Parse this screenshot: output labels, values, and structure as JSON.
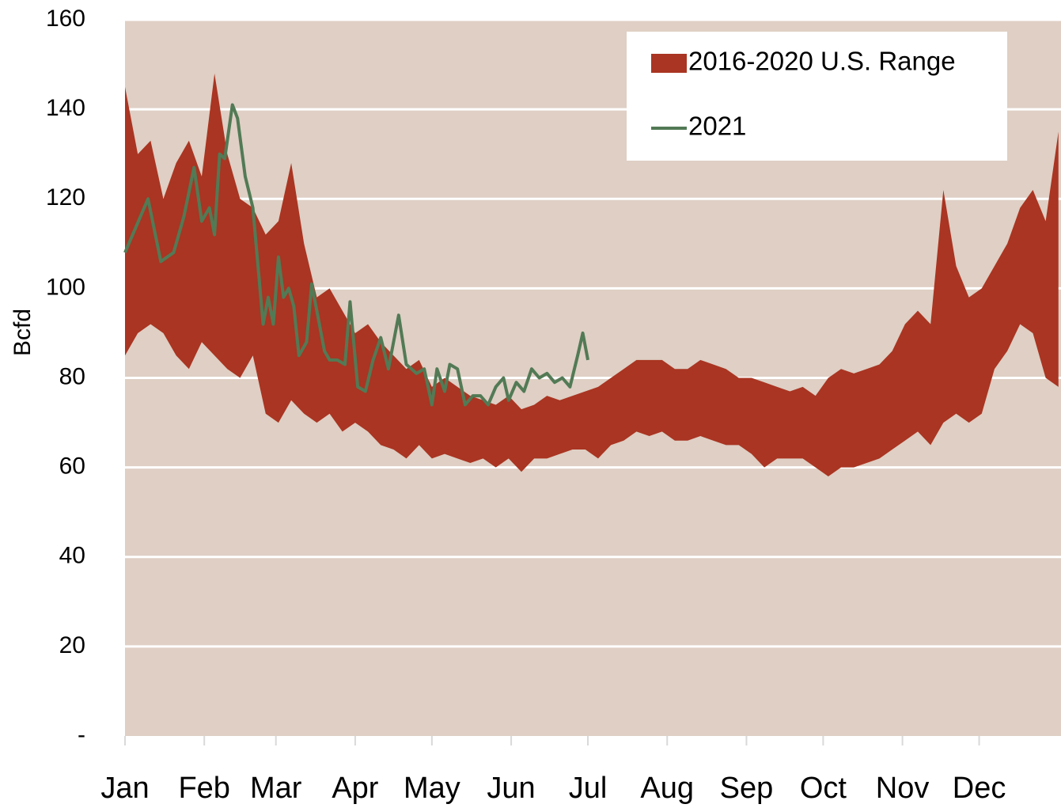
{
  "chart_data": {
    "type": "line",
    "y_label": "Bcfd",
    "xlim": [
      1,
      367
    ],
    "xticks": [
      {
        "value": 1,
        "label": "Jan"
      },
      {
        "value": 32,
        "label": "Feb"
      },
      {
        "value": 60,
        "label": "Mar"
      },
      {
        "value": 91,
        "label": "Apr"
      },
      {
        "value": 121,
        "label": "May"
      },
      {
        "value": 152,
        "label": "Jun"
      },
      {
        "value": 182,
        "label": "Jul"
      },
      {
        "value": 213,
        "label": "Aug"
      },
      {
        "value": 244,
        "label": "Sep"
      },
      {
        "value": 274,
        "label": "Oct"
      },
      {
        "value": 305,
        "label": "Nov"
      },
      {
        "value": 335,
        "label": "Dec"
      }
    ],
    "ylim": [
      0,
      160
    ],
    "yticks": [
      {
        "value": 0,
        "label": "-"
      },
      20,
      40,
      60,
      80,
      100,
      120,
      140,
      160
    ],
    "grid": true,
    "background": "#dfcfc4",
    "legend": "top-right",
    "series": [
      {
        "name": "2016-2020 U.S. Range",
        "type": "band",
        "color": "#a93522",
        "x": [
          1,
          6,
          11,
          16,
          21,
          26,
          31,
          36,
          41,
          46,
          51,
          56,
          61,
          66,
          71,
          76,
          81,
          86,
          91,
          96,
          101,
          106,
          111,
          116,
          121,
          126,
          131,
          136,
          141,
          146,
          151,
          156,
          161,
          166,
          171,
          176,
          181,
          186,
          191,
          196,
          201,
          206,
          211,
          216,
          221,
          226,
          231,
          236,
          241,
          246,
          251,
          256,
          261,
          266,
          271,
          276,
          281,
          286,
          291,
          296,
          301,
          306,
          311,
          316,
          321,
          326,
          331,
          336,
          341,
          346,
          351,
          356,
          361,
          366
        ],
        "high": [
          145,
          130,
          133,
          120,
          128,
          133,
          125,
          148,
          130,
          120,
          118,
          112,
          115,
          128,
          110,
          98,
          100,
          95,
          90,
          92,
          88,
          85,
          82,
          84,
          78,
          80,
          78,
          76,
          75,
          74,
          76,
          73,
          74,
          76,
          75,
          76,
          77,
          78,
          80,
          82,
          84,
          84,
          84,
          82,
          82,
          84,
          83,
          82,
          80,
          80,
          79,
          78,
          77,
          78,
          76,
          80,
          82,
          81,
          82,
          83,
          86,
          92,
          95,
          92,
          122,
          105,
          98,
          100,
          105,
          110,
          118,
          122,
          115,
          135
        ],
        "low": [
          85,
          90,
          92,
          90,
          85,
          82,
          88,
          85,
          82,
          80,
          85,
          72,
          70,
          75,
          72,
          70,
          72,
          68,
          70,
          68,
          65,
          64,
          62,
          65,
          62,
          63,
          62,
          61,
          62,
          60,
          62,
          59,
          62,
          62,
          63,
          64,
          64,
          62,
          65,
          66,
          68,
          67,
          68,
          66,
          66,
          67,
          66,
          65,
          65,
          63,
          60,
          62,
          62,
          62,
          60,
          58,
          60,
          60,
          61,
          62,
          64,
          66,
          68,
          65,
          70,
          72,
          70,
          72,
          82,
          86,
          92,
          90,
          80,
          78
        ]
      },
      {
        "name": "2021",
        "type": "line",
        "color": "#527a55",
        "x": [
          1,
          10,
          15,
          20,
          24,
          28,
          31,
          34,
          36,
          38,
          40,
          43,
          45,
          48,
          51,
          53,
          55,
          57,
          59,
          61,
          63,
          65,
          67,
          69,
          72,
          74,
          76,
          79,
          81,
          84,
          87,
          89,
          92,
          95,
          98,
          101,
          104,
          108,
          111,
          115,
          118,
          121,
          123,
          126,
          128,
          131,
          134,
          137,
          140,
          143,
          146,
          149,
          151,
          154,
          157,
          160,
          163,
          166,
          169,
          172,
          175,
          178,
          180,
          182
        ],
        "values": [
          108,
          120,
          106,
          108,
          116,
          127,
          115,
          118,
          112,
          130,
          129,
          141,
          138,
          125,
          118,
          105,
          92,
          98,
          92,
          107,
          98,
          100,
          96,
          85,
          88,
          101,
          95,
          86,
          84,
          84,
          83,
          97,
          78,
          77,
          84,
          89,
          82,
          94,
          83,
          81,
          82,
          74,
          82,
          77,
          83,
          82,
          74,
          76,
          76,
          74,
          78,
          80,
          75,
          79,
          77,
          82,
          80,
          81,
          79,
          80,
          78,
          85,
          90,
          84
        ]
      }
    ]
  }
}
